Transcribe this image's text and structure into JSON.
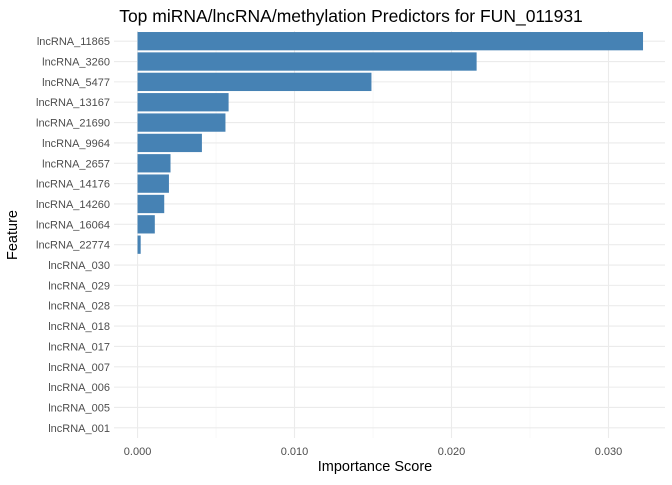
{
  "chart_data": {
    "type": "bar",
    "orientation": "horizontal",
    "title": "Top miRNA/lncRNA/methylation Predictors for FUN_011931",
    "xlabel": "Importance Score",
    "ylabel": "Feature",
    "categories": [
      "lncRNA_11865",
      "lncRNA_3260",
      "lncRNA_5477",
      "lncRNA_13167",
      "lncRNA_21690",
      "lncRNA_9964",
      "lncRNA_2657",
      "lncRNA_14176",
      "lncRNA_14260",
      "lncRNA_16064",
      "lncRNA_22774",
      "lncRNA_030",
      "lncRNA_029",
      "lncRNA_028",
      "lncRNA_018",
      "lncRNA_017",
      "lncRNA_007",
      "lncRNA_006",
      "lncRNA_005",
      "lncRNA_001"
    ],
    "values": [
      0.0322,
      0.0216,
      0.0149,
      0.0058,
      0.0056,
      0.0041,
      0.0021,
      0.002,
      0.0017,
      0.0011,
      0.0002,
      0,
      0,
      0,
      0,
      0,
      0,
      0,
      0,
      0
    ],
    "xlim": [
      -0.0015,
      0.0336
    ],
    "xticks": [
      0,
      0.01,
      0.02,
      0.03
    ],
    "xtick_labels": [
      "0.000",
      "0.010",
      "0.020",
      "0.030"
    ],
    "bar_color": "#4682B4",
    "grid": true,
    "legend": "none"
  }
}
